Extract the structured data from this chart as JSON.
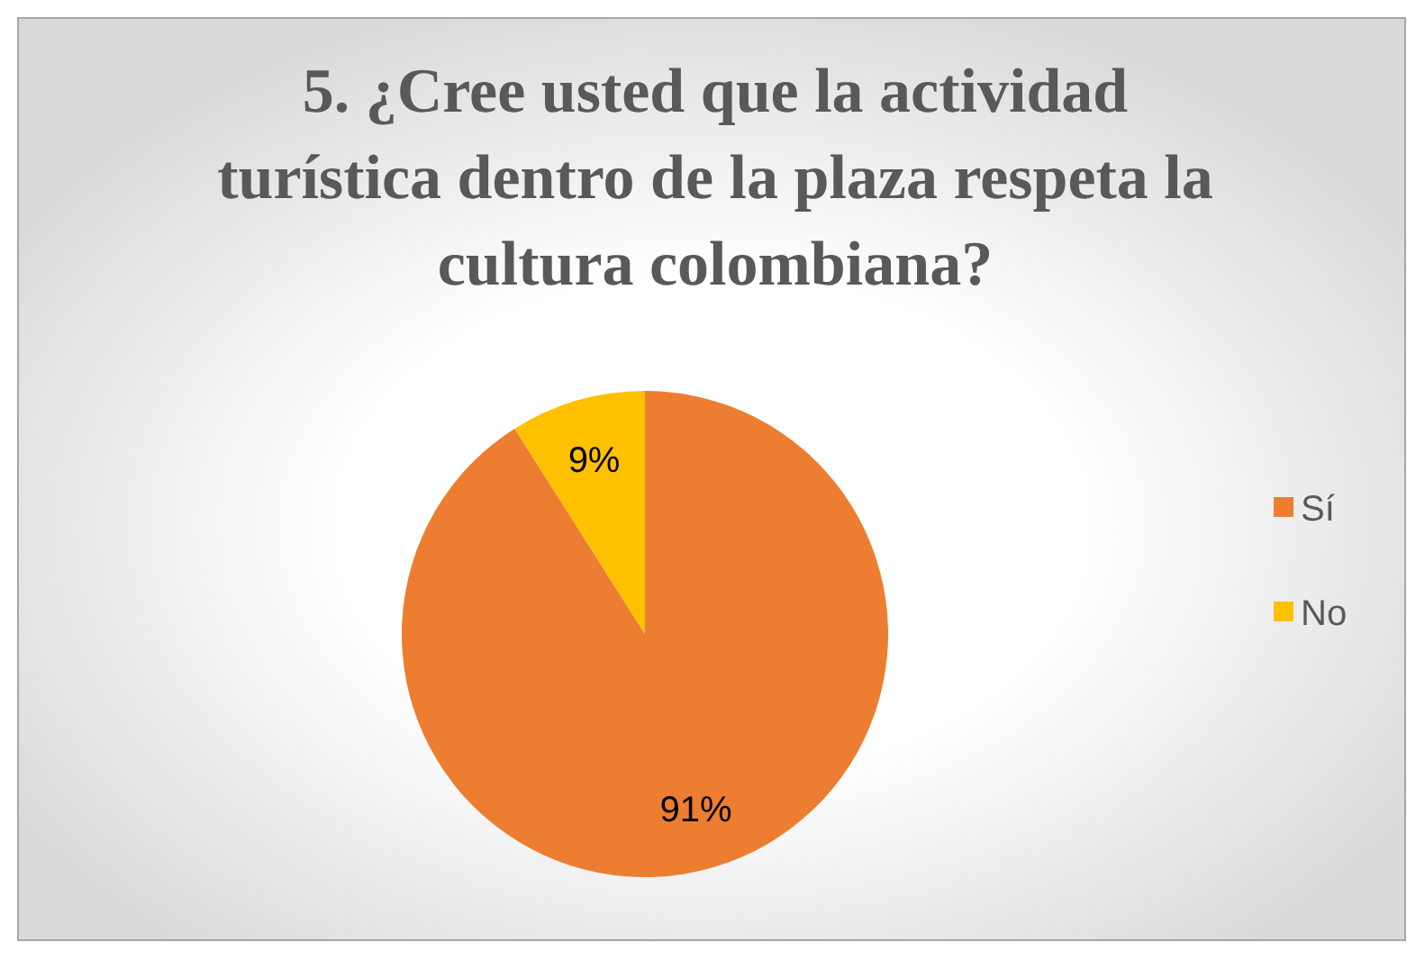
{
  "chart_data": {
    "type": "pie",
    "title": "5. ¿Cree usted que la actividad turística dentro de la plaza respeta la cultura colombiana?",
    "categories": [
      "Sí",
      "No"
    ],
    "values": [
      91,
      9
    ],
    "colors": [
      "#ed7d31",
      "#ffc000"
    ],
    "value_labels": [
      "91%",
      "9%"
    ],
    "legend": "right"
  }
}
